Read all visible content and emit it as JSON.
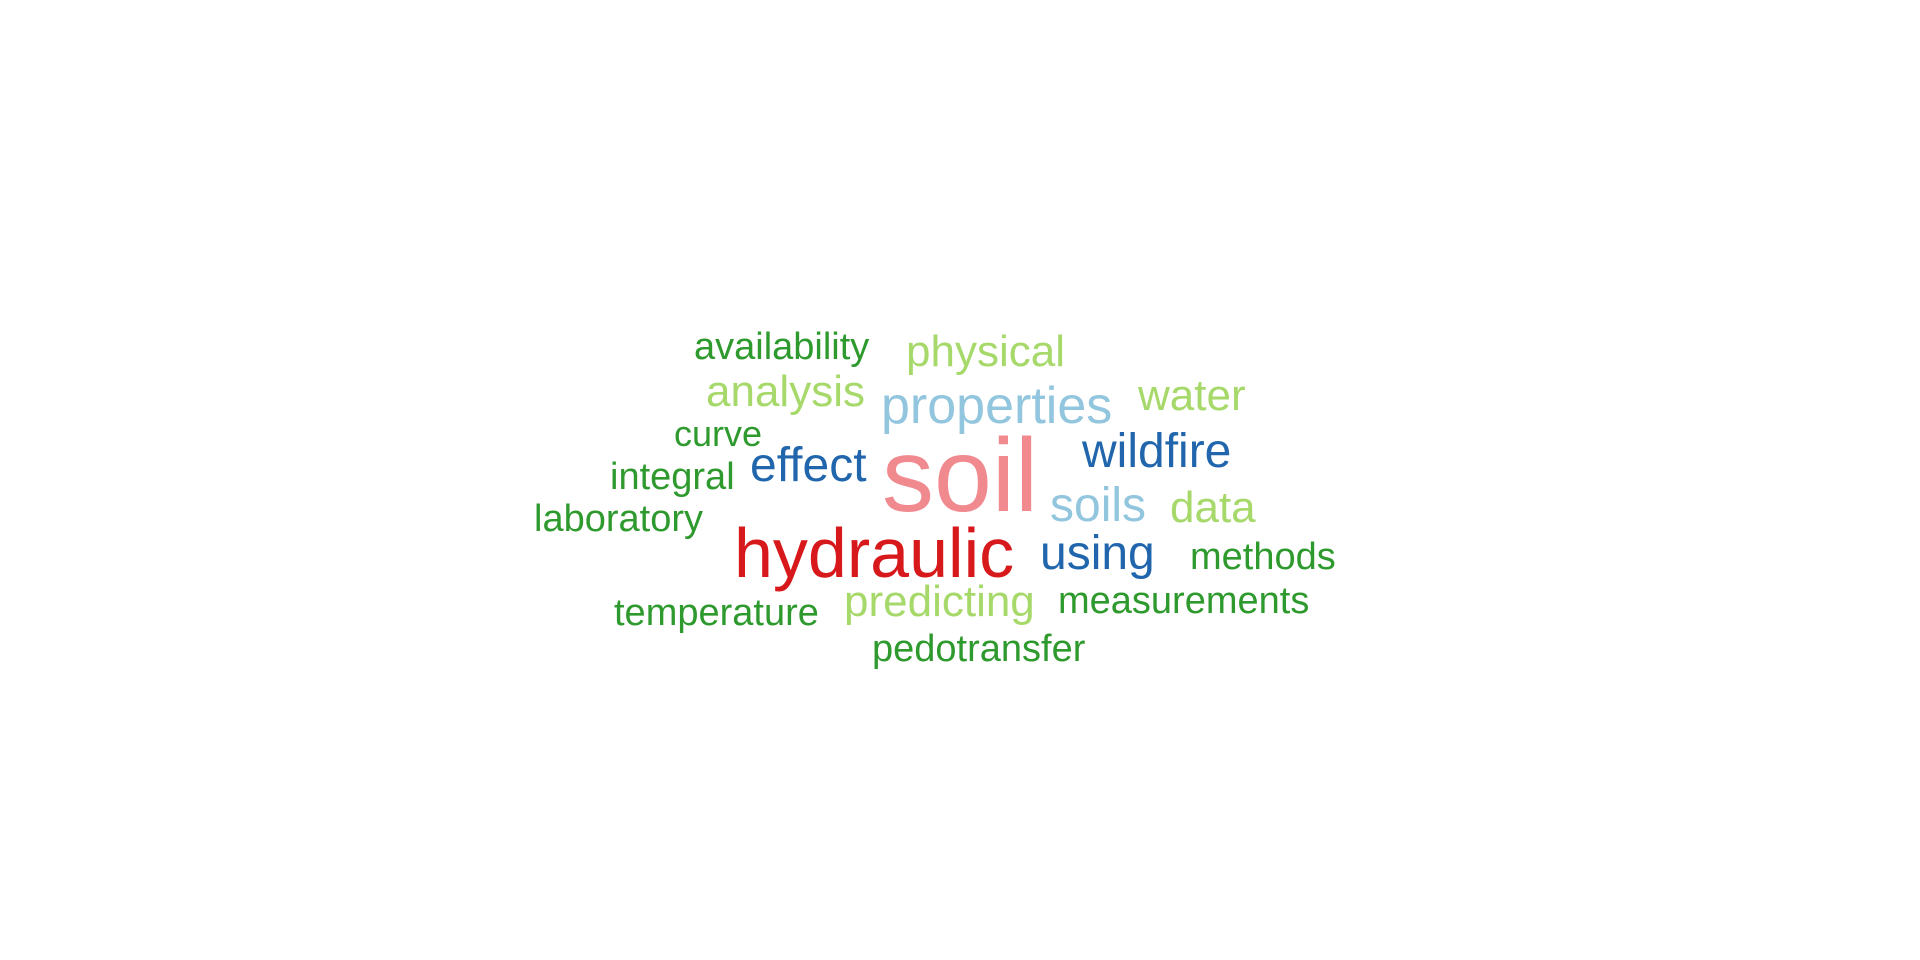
{
  "palette": {
    "pink": "#F08A8F",
    "red": "#D7191C",
    "dark_blue": "#2166AC",
    "light_blue": "#92C5DE",
    "light_green": "#A6D96A",
    "dark_green": "#2E9A2E"
  },
  "words": {
    "soil": "soil",
    "hydraulic": "hydraulic",
    "properties": "properties",
    "wildfire": "wildfire",
    "effect": "effect",
    "soils": "soils",
    "using": "using",
    "physical": "physical",
    "analysis": "analysis",
    "water": "water",
    "data": "data",
    "predicting": "predicting",
    "availability": "availability",
    "curve": "curve",
    "integral": "integral",
    "laboratory": "laboratory",
    "methods": "methods",
    "temperature": "temperature",
    "measurements": "measurements",
    "pedotransfer": "pedotransfer"
  },
  "word_colors": {
    "soil": "#F08A8F",
    "hydraulic": "#D7191C",
    "properties": "#92C5DE",
    "wildfire": "#2166AC",
    "effect": "#2166AC",
    "soils": "#92C5DE",
    "using": "#2166AC",
    "physical": "#A6D96A",
    "analysis": "#A6D96A",
    "water": "#A6D96A",
    "data": "#A6D96A",
    "predicting": "#A6D96A",
    "availability": "#2E9A2E",
    "curve": "#2E9A2E",
    "integral": "#2E9A2E",
    "laboratory": "#2E9A2E",
    "methods": "#2E9A2E",
    "temperature": "#2E9A2E",
    "measurements": "#2E9A2E",
    "pedotransfer": "#2E9A2E"
  }
}
